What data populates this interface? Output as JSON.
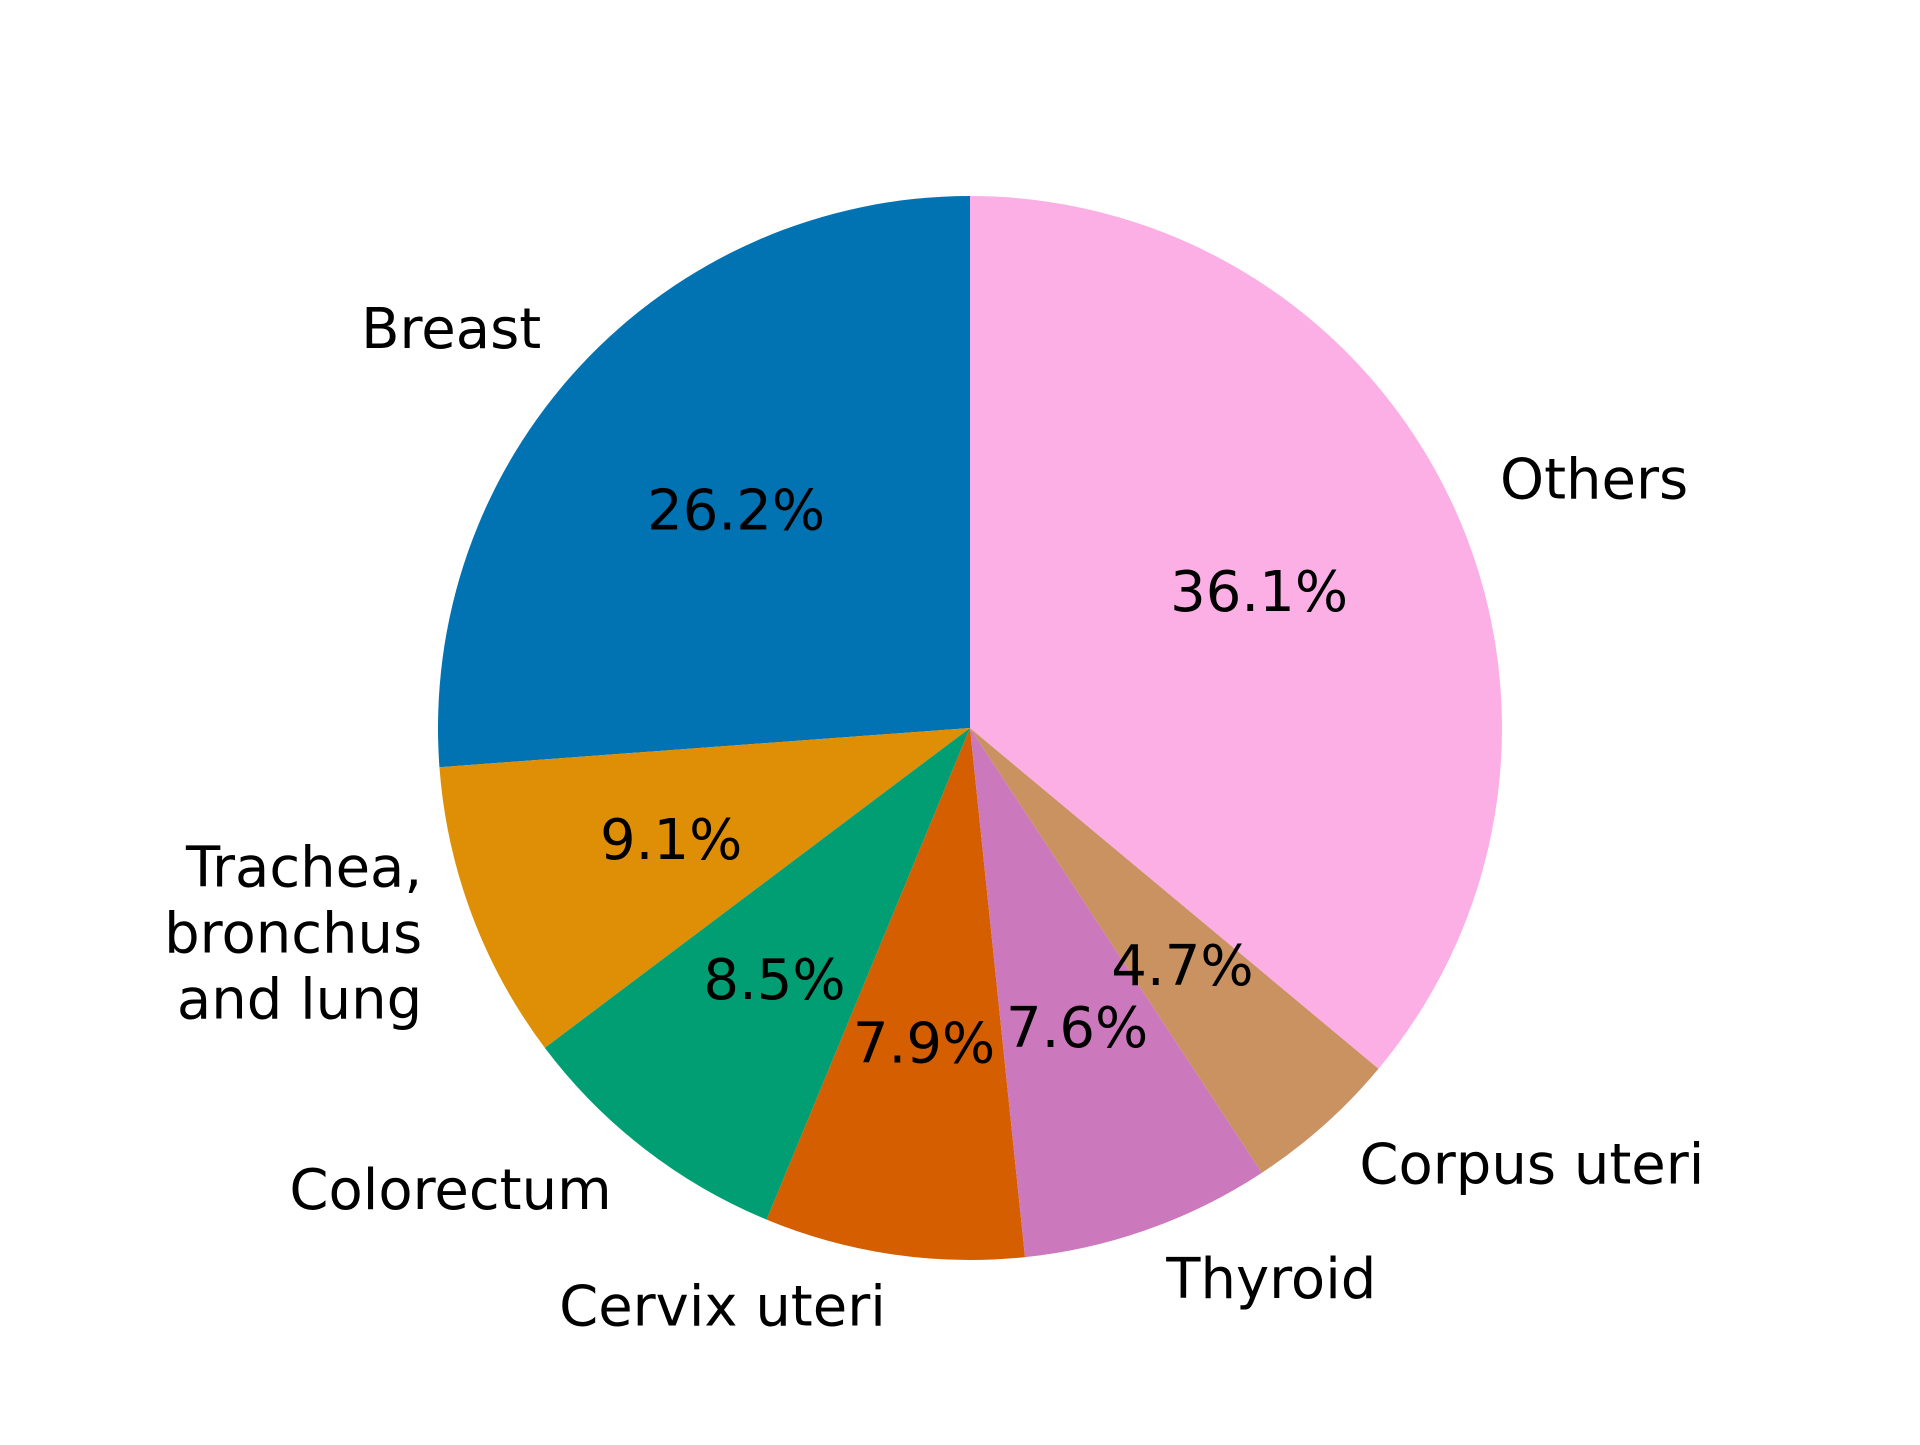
{
  "chart_data": {
    "type": "pie",
    "start_angle_deg": 90,
    "direction": "counterclockwise",
    "slices": [
      {
        "label": "Breast",
        "value": 26.2,
        "pct_label": "26.2%",
        "color": "#0173b2"
      },
      {
        "label": "Trachea, bronchus and lung",
        "label_lines": [
          "Trachea,",
          "bronchus",
          "and lung"
        ],
        "value": 9.1,
        "pct_label": "9.1%",
        "color": "#de8f05"
      },
      {
        "label": "Colorectum",
        "value": 8.5,
        "pct_label": "8.5%",
        "color": "#029e73"
      },
      {
        "label": "Cervix uteri",
        "value": 7.9,
        "pct_label": "7.9%",
        "color": "#d55e00"
      },
      {
        "label": "Thyroid",
        "value": 7.6,
        "pct_label": "7.6%",
        "color": "#cc78bc"
      },
      {
        "label": "Corpus uteri",
        "value": 4.7,
        "pct_label": "4.7%",
        "color": "#ca9161"
      },
      {
        "label": "Others",
        "value": 36.1,
        "pct_label": "36.1%",
        "color": "#fbafe4"
      }
    ]
  }
}
